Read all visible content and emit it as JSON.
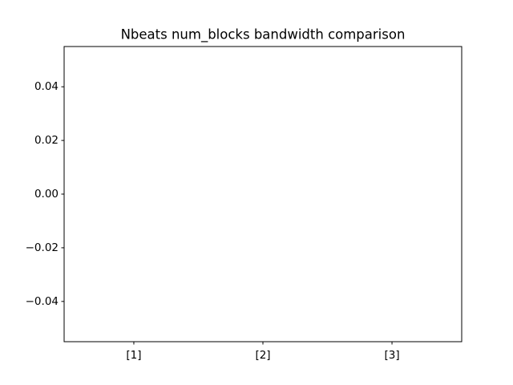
{
  "chart_data": {
    "type": "bar",
    "title": "Nbeats num_blocks bandwidth comparison",
    "categories": [
      "[1]",
      "[2]",
      "[3]"
    ],
    "values": [
      0,
      0,
      0
    ],
    "color": "#1f77b4",
    "ylim": [
      -0.055,
      0.055
    ],
    "yticks": [
      {
        "value": -0.04,
        "label": "−0.04"
      },
      {
        "value": -0.02,
        "label": "−0.02"
      },
      {
        "value": 0,
        "label": "0.00"
      },
      0.02,
      0.04
    ],
    "grid": false
  }
}
